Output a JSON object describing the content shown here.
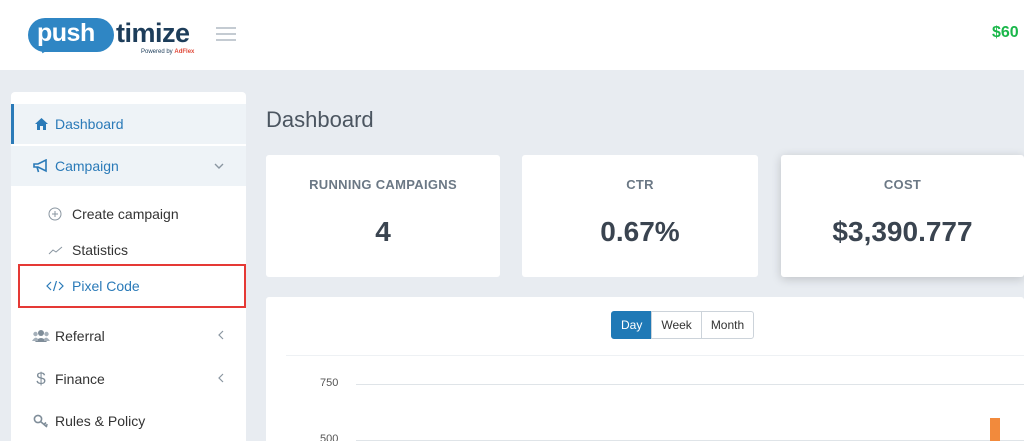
{
  "header": {
    "logo": {
      "pill_text": "push",
      "word": "timize",
      "powered_prefix": "Powered by ",
      "powered_brand": "AdFlex"
    },
    "balance": "$60"
  },
  "sidebar": {
    "items": [
      {
        "label": "Dashboard",
        "icon": "home-icon"
      },
      {
        "label": "Campaign",
        "icon": "megaphone-icon"
      },
      {
        "label": "Referral",
        "icon": "users-icon"
      },
      {
        "label": "Finance",
        "icon": "dollar-icon"
      },
      {
        "label": "Rules & Policy",
        "icon": "key-icon"
      }
    ],
    "campaign_sub": [
      {
        "label": "Create campaign",
        "icon": "plus-circle-icon"
      },
      {
        "label": "Statistics",
        "icon": "line-chart-icon"
      },
      {
        "label": "Pixel Code",
        "icon": "code-icon"
      }
    ]
  },
  "main": {
    "title": "Dashboard",
    "cards": [
      {
        "label": "RUNNING CAMPAIGNS",
        "value": "4"
      },
      {
        "label": "CTR",
        "value": "0.67%"
      },
      {
        "label": "COST",
        "value": "$3,390.777"
      }
    ],
    "period_buttons": [
      "Day",
      "Week",
      "Month"
    ],
    "active_period": "Day"
  },
  "chart_data": {
    "type": "bar",
    "y_ticks": [
      "750",
      "500"
    ],
    "ylim": [
      500,
      750
    ],
    "visible_bar_value": 600,
    "bar_color": "#f28a3c"
  },
  "colors": {
    "accent": "#2a7ab8",
    "balance": "#1ab74a",
    "highlight": "#e53935"
  }
}
